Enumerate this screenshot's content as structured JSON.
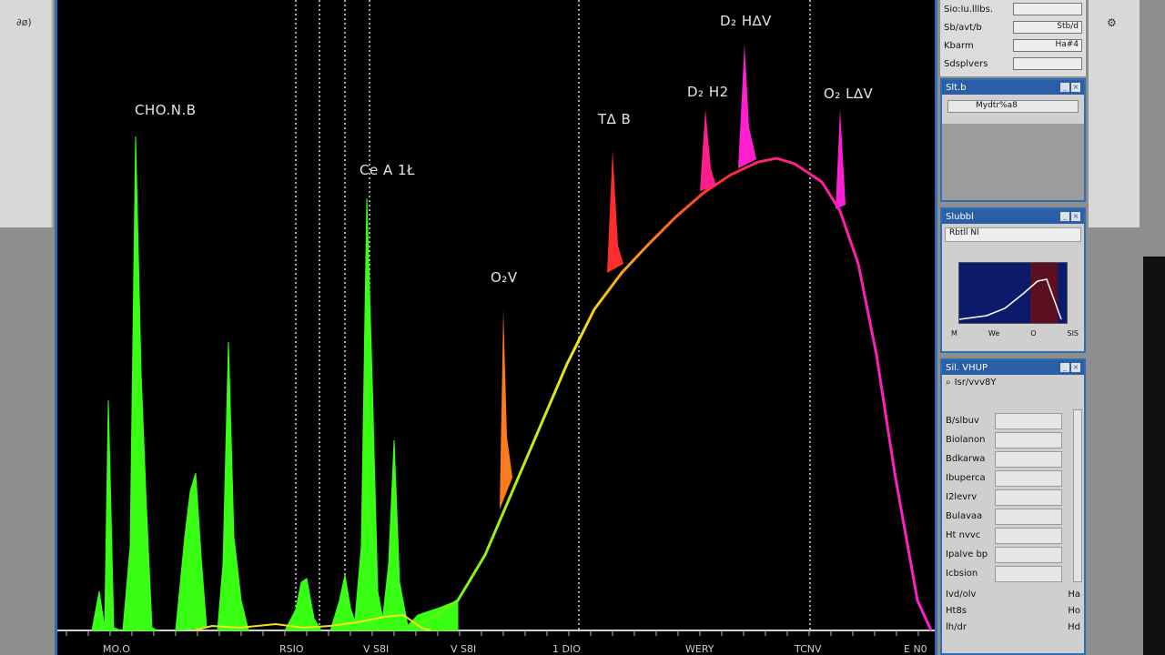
{
  "left_pane": {
    "corner_label": "∂ø)"
  },
  "far_right": {
    "corner_label": "⚙"
  },
  "plot": {
    "peak_labels": [
      "CHO.N.B",
      "Ce A 1Ł",
      "O₂V",
      "T∆ B",
      "D₂ H2",
      "D₂ H∆V",
      "O₂ L∆V"
    ],
    "x_ticks": [
      "MO.O",
      "RSIO",
      "V S8I",
      "V S8I",
      "1 DIO",
      "WERY",
      "TCNV",
      "E N0"
    ],
    "colors": {
      "green": "#39ff14",
      "orange": "#ff7a1a",
      "red": "#ff2d2d",
      "magenta": "#ff1fd0",
      "yellow": "#f5e21a"
    }
  },
  "panel_props": {
    "rows": [
      {
        "label": "Sio:lu.lllbs.",
        "value": ""
      },
      {
        "label": "Sb/avt/b",
        "value": "Stb/d"
      },
      {
        "label": "Kbarm",
        "value": "Ha#4"
      },
      {
        "label": "Sdsplvers",
        "value": ""
      }
    ]
  },
  "panel_slider": {
    "title": "Slt.b",
    "slider_text": "Mydtr%a8"
  },
  "panel_thumb": {
    "title": "Slubbl",
    "tool_text": "Rbtll Nl",
    "ticks": [
      "M",
      "We",
      "O",
      "SIS"
    ]
  },
  "panel_list": {
    "title": "Sil. VHUP",
    "search_label": "Isr/vvv8Y",
    "items": [
      "B/slbuv",
      "Biolanon",
      "Bdkarwa",
      "Ibuperca",
      "I2levrv",
      "Bulavaa",
      "Ht nvvc",
      "Ipalve bp",
      "Icbsion"
    ],
    "bottom": [
      {
        "a": "Ivd/olv",
        "b": "Ha"
      },
      {
        "a": "Ht8s",
        "b": "Ho"
      },
      {
        "a": "lh/dr",
        "b": "Hd"
      }
    ]
  }
}
